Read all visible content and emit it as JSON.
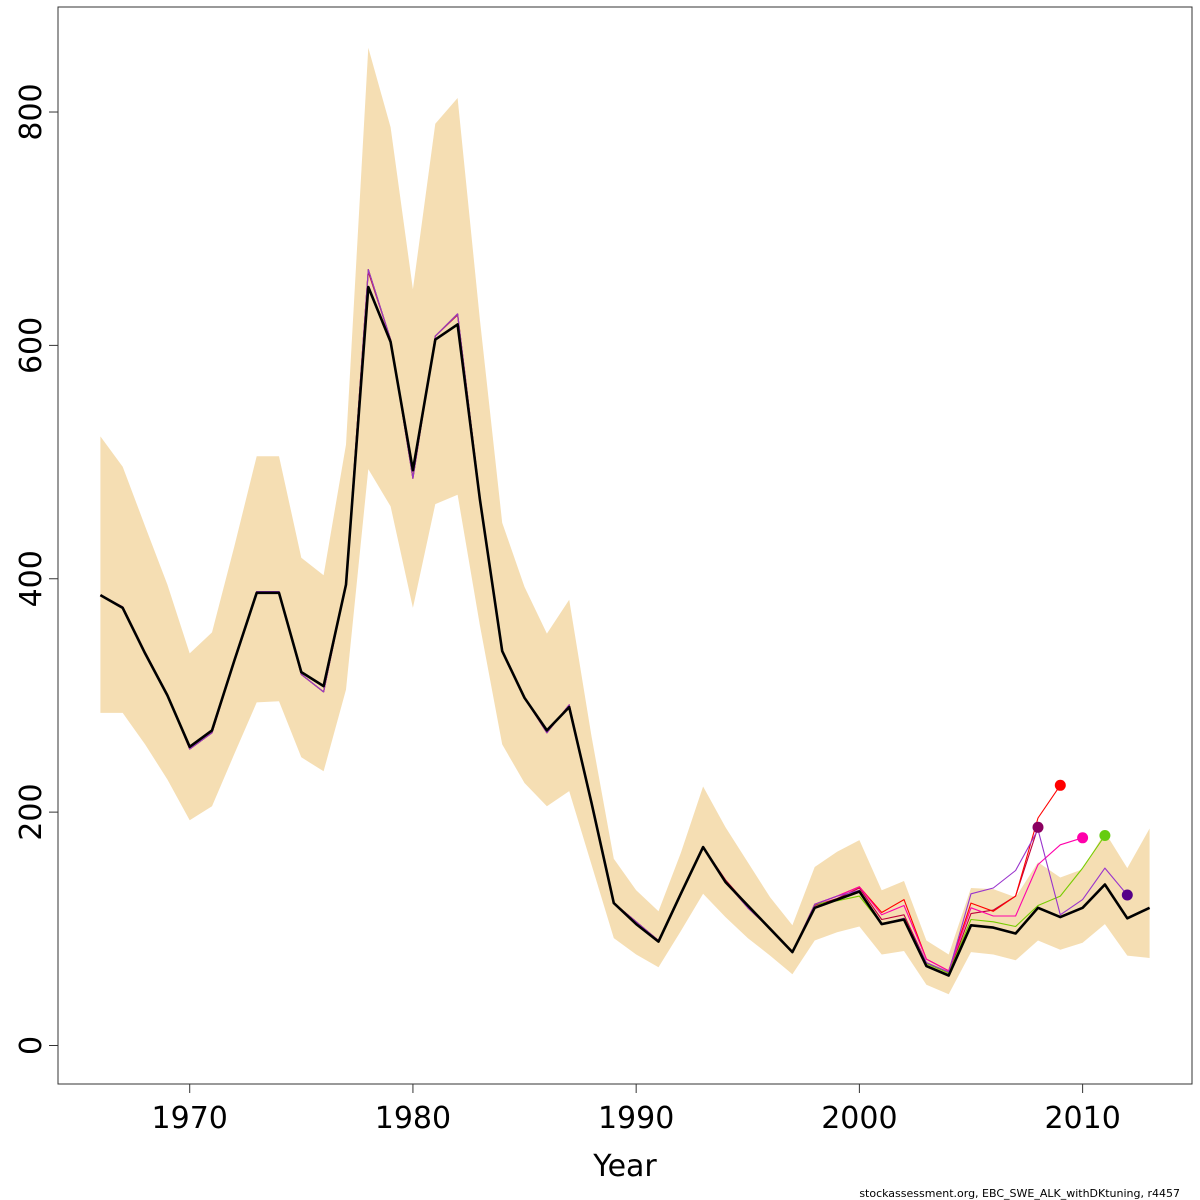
{
  "chart_data": {
    "type": "line",
    "title": "",
    "xlabel": "Year",
    "ylabel": "",
    "xlim": [
      1964.1,
      2014.9
    ],
    "ylim": [
      -33,
      890
    ],
    "x_ticks": [
      1970,
      1980,
      1990,
      2000,
      2010
    ],
    "x_tick_labels": [
      "1970",
      "1980",
      "1990",
      "2000",
      "2010"
    ],
    "y_ticks": [
      0,
      200,
      400,
      600,
      800
    ],
    "y_tick_labels": [
      "0",
      "200",
      "400",
      "600",
      "800"
    ],
    "grid": false,
    "legend": "none",
    "years": [
      1966,
      1967,
      1968,
      1969,
      1970,
      1971,
      1972,
      1973,
      1974,
      1975,
      1976,
      1977,
      1978,
      1979,
      1980,
      1981,
      1982,
      1983,
      1984,
      1985,
      1986,
      1987,
      1988,
      1989,
      1990,
      1991,
      1992,
      1993,
      1994,
      1995,
      1996,
      1997,
      1998,
      1999,
      2000,
      2001,
      2002,
      2003,
      2004,
      2005,
      2006,
      2007,
      2008,
      2009,
      2010,
      2011,
      2012,
      2013
    ],
    "confidence_band": {
      "color": "#f5deb3",
      "lower": [
        285,
        285,
        258,
        228,
        193,
        205,
        250,
        294,
        295,
        247,
        235,
        305,
        494,
        462,
        375,
        464,
        472,
        360,
        258,
        225,
        205,
        218,
        155,
        92,
        78,
        67,
        98,
        130,
        110,
        92,
        77,
        61,
        90,
        97,
        102,
        78,
        81,
        52,
        44,
        80,
        78,
        73,
        90,
        82,
        88,
        104,
        77,
        75
      ],
      "upper": [
        522,
        496,
        445,
        395,
        336,
        354,
        428,
        505,
        505,
        418,
        403,
        515,
        855,
        787,
        648,
        790,
        812,
        622,
        448,
        393,
        353,
        382,
        265,
        160,
        133,
        115,
        165,
        222,
        187,
        157,
        127,
        103,
        153,
        166,
        176,
        133,
        141,
        90,
        78,
        135,
        134,
        127,
        157,
        144,
        151,
        183,
        152,
        186
      ]
    },
    "series": [
      {
        "color": "#000000",
        "role": "main",
        "values": [
          386,
          375,
          336,
          300,
          256,
          270,
          330,
          388,
          388,
          320,
          308,
          395,
          650,
          603,
          493,
          605,
          618,
          468,
          338,
          298,
          270,
          290,
          208,
          122,
          104,
          89,
          130,
          170,
          140,
          120,
          100,
          80,
          118,
          125,
          132,
          104,
          108,
          68,
          60,
          103,
          101,
          96,
          118,
          110,
          118,
          138,
          109,
          118
        ]
      },
      {
        "color": "#c0003c",
        "end_point_color": "#8b0060",
        "values": [
          386,
          376,
          337,
          301,
          254,
          268,
          330,
          389,
          389,
          318,
          303,
          396,
          663,
          605,
          487,
          608,
          626,
          470,
          338,
          298,
          268,
          292,
          208,
          122,
          106,
          90,
          130,
          170,
          142,
          120,
          100,
          80,
          120,
          126,
          135,
          108,
          112,
          71,
          62,
          113,
          116,
          128,
          187
        ]
      },
      {
        "color": "#ff0000",
        "end_point_color": "#ff0000",
        "values": [
          386,
          376,
          337,
          301,
          254,
          268,
          330,
          389,
          389,
          318,
          303,
          396,
          665,
          605,
          486,
          608,
          627,
          470,
          338,
          298,
          268,
          292,
          208,
          122,
          106,
          90,
          130,
          170,
          140,
          118,
          100,
          80,
          121,
          128,
          136,
          114,
          125,
          74,
          64,
          122,
          115,
          128,
          195,
          223
        ]
      },
      {
        "color": "#ff00aa",
        "end_point_color": "#ff00aa",
        "values": [
          386,
          376,
          337,
          301,
          254,
          268,
          330,
          389,
          389,
          318,
          303,
          396,
          665,
          605,
          486,
          608,
          627,
          470,
          338,
          298,
          268,
          292,
          208,
          122,
          106,
          90,
          130,
          170,
          140,
          118,
          100,
          80,
          121,
          128,
          136,
          112,
          120,
          74,
          64,
          118,
          111,
          111,
          155,
          172,
          178
        ]
      },
      {
        "color": "#77cc00",
        "end_point_color": "#66cc11",
        "values": [
          386,
          376,
          337,
          301,
          254,
          268,
          330,
          389,
          389,
          318,
          303,
          396,
          665,
          605,
          486,
          608,
          627,
          470,
          338,
          298,
          268,
          292,
          208,
          122,
          106,
          90,
          130,
          170,
          140,
          118,
          100,
          80,
          121,
          124,
          128,
          104,
          109,
          70,
          62,
          108,
          106,
          102,
          120,
          128,
          152,
          180
        ]
      },
      {
        "color": "#9933cc",
        "end_point_color": "#550088",
        "values": [
          386,
          376,
          337,
          301,
          254,
          268,
          330,
          389,
          389,
          318,
          303,
          396,
          665,
          605,
          486,
          608,
          627,
          470,
          338,
          298,
          268,
          292,
          208,
          122,
          106,
          90,
          130,
          170,
          140,
          118,
          100,
          80,
          121,
          128,
          133,
          104,
          109,
          71,
          63,
          130,
          135,
          150,
          185,
          112,
          125,
          152,
          129
        ]
      }
    ]
  },
  "footer": {
    "caption": "stockassessment.org, EBC_SWE_ALK_withDKtuning, r4457"
  }
}
